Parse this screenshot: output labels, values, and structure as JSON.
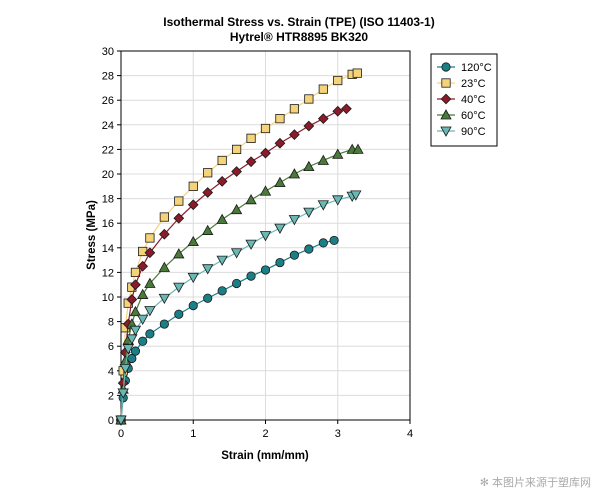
{
  "chart_data": {
    "type": "scatter",
    "title": "Isothermal Stress vs. Strain (TPE) (ISO 11403-1)",
    "subtitle": "Hytrel® HTR8895 BK320",
    "xlabel": "Strain (mm/mm)",
    "ylabel": "Stress (MPa)",
    "xlim": [
      0,
      4
    ],
    "ylim": [
      0,
      30
    ],
    "xticks": [
      "0",
      "1",
      "2",
      "3",
      "4"
    ],
    "yticks": [
      "0",
      "2",
      "4",
      "6",
      "8",
      "10",
      "12",
      "14",
      "16",
      "18",
      "20",
      "22",
      "24",
      "26",
      "28",
      "30"
    ],
    "grid": true,
    "legend_position": "right",
    "series": [
      {
        "name": "120°C",
        "marker": "circle",
        "color": "#1a7f86",
        "x": [
          0,
          0.03,
          0.06,
          0.1,
          0.15,
          0.2,
          0.3,
          0.4,
          0.6,
          0.8,
          1.0,
          1.2,
          1.4,
          1.6,
          1.8,
          2.0,
          2.2,
          2.4,
          2.6,
          2.8,
          2.95
        ],
        "y": [
          0,
          1.8,
          3.2,
          4.2,
          5.0,
          5.6,
          6.4,
          7.0,
          7.8,
          8.6,
          9.3,
          9.9,
          10.5,
          11.1,
          11.7,
          12.2,
          12.8,
          13.4,
          13.9,
          14.4,
          14.6
        ]
      },
      {
        "name": "23°C",
        "marker": "square",
        "color": "#f5d37a",
        "x": [
          0,
          0.03,
          0.06,
          0.1,
          0.15,
          0.2,
          0.3,
          0.4,
          0.6,
          0.8,
          1.0,
          1.2,
          1.4,
          1.6,
          1.8,
          2.0,
          2.2,
          2.4,
          2.6,
          2.8,
          3.0,
          3.2,
          3.27
        ],
        "y": [
          0,
          4.0,
          7.5,
          9.5,
          10.8,
          12.0,
          13.7,
          14.8,
          16.5,
          17.8,
          19.0,
          20.1,
          21.1,
          22.0,
          22.9,
          23.7,
          24.5,
          25.3,
          26.1,
          26.9,
          27.6,
          28.1,
          28.2
        ]
      },
      {
        "name": "40°C",
        "marker": "diamond",
        "color": "#8b1a2a",
        "x": [
          0,
          0.03,
          0.06,
          0.1,
          0.15,
          0.2,
          0.3,
          0.4,
          0.6,
          0.8,
          1.0,
          1.2,
          1.4,
          1.6,
          1.8,
          2.0,
          2.2,
          2.4,
          2.6,
          2.8,
          3.0,
          3.12
        ],
        "y": [
          0,
          3.0,
          5.5,
          7.8,
          9.8,
          11.0,
          12.5,
          13.6,
          15.1,
          16.4,
          17.5,
          18.5,
          19.4,
          20.2,
          21.0,
          21.7,
          22.5,
          23.2,
          23.9,
          24.5,
          25.1,
          25.3
        ]
      },
      {
        "name": "60°C",
        "marker": "triangle-up",
        "color": "#4a7a3a",
        "x": [
          0,
          0.03,
          0.06,
          0.1,
          0.15,
          0.2,
          0.3,
          0.4,
          0.6,
          0.8,
          1.0,
          1.2,
          1.4,
          1.6,
          1.8,
          2.0,
          2.2,
          2.4,
          2.6,
          2.8,
          3.0,
          3.2,
          3.28
        ],
        "y": [
          0,
          2.5,
          4.8,
          6.5,
          7.8,
          8.8,
          10.2,
          11.1,
          12.4,
          13.5,
          14.5,
          15.4,
          16.3,
          17.1,
          17.9,
          18.6,
          19.3,
          20.0,
          20.6,
          21.1,
          21.6,
          22.0,
          22.0
        ]
      },
      {
        "name": "90°C",
        "marker": "triangle-down",
        "color": "#6ab8b4",
        "x": [
          0,
          0.03,
          0.06,
          0.1,
          0.15,
          0.2,
          0.3,
          0.4,
          0.6,
          0.8,
          1.0,
          1.2,
          1.4,
          1.6,
          1.8,
          2.0,
          2.2,
          2.4,
          2.6,
          2.8,
          3.0,
          3.2,
          3.25
        ],
        "y": [
          0,
          2.2,
          4.2,
          5.8,
          6.6,
          7.3,
          8.2,
          8.9,
          9.9,
          10.8,
          11.6,
          12.3,
          13.0,
          13.6,
          14.3,
          15.0,
          15.6,
          16.3,
          16.9,
          17.5,
          17.9,
          18.2,
          18.3
        ]
      }
    ]
  },
  "watermark": "✻ 本图片来源于塑库网"
}
